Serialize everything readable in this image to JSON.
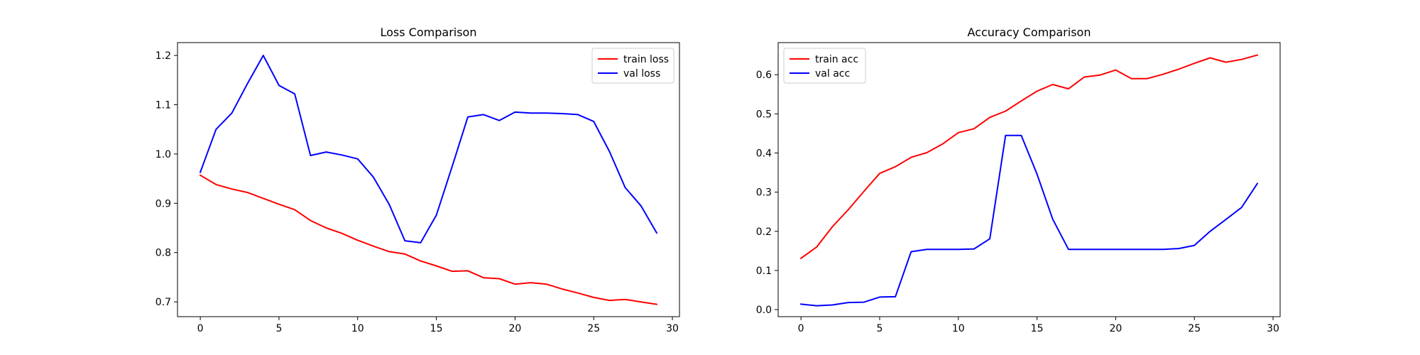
{
  "chart_data": [
    {
      "type": "line",
      "title": "Loss Comparison",
      "xlabel": "",
      "ylabel": "",
      "xlim": [
        -1.45,
        30.45
      ],
      "ylim": [
        0.67,
        1.226
      ],
      "xticks": [
        0,
        5,
        10,
        15,
        20,
        25,
        30
      ],
      "yticks": [
        0.7,
        0.8,
        0.9,
        1.0,
        1.1,
        1.2
      ],
      "ytick_labels": [
        "0.7",
        "0.8",
        "0.9",
        "1.0",
        "1.1",
        "1.2"
      ],
      "legend_position": "upper right",
      "x": [
        0,
        1,
        2,
        3,
        4,
        5,
        6,
        7,
        8,
        9,
        10,
        11,
        12,
        13,
        14,
        15,
        16,
        17,
        18,
        19,
        20,
        21,
        22,
        23,
        24,
        25,
        26,
        27,
        28,
        29
      ],
      "series": [
        {
          "name": "train loss",
          "color": "#ff0000",
          "values": [
            0.957,
            0.938,
            0.929,
            0.922,
            0.91,
            0.898,
            0.887,
            0.865,
            0.85,
            0.839,
            0.825,
            0.813,
            0.802,
            0.797,
            0.783,
            0.773,
            0.762,
            0.763,
            0.749,
            0.747,
            0.736,
            0.739,
            0.736,
            0.726,
            0.718,
            0.709,
            0.703,
            0.705,
            0.7,
            0.695
          ]
        },
        {
          "name": "val loss",
          "color": "#0000ff",
          "values": [
            0.963,
            1.05,
            1.083,
            1.143,
            1.2,
            1.139,
            1.122,
            0.997,
            1.004,
            0.998,
            0.99,
            0.953,
            0.898,
            0.824,
            0.82,
            0.876,
            0.974,
            1.075,
            1.08,
            1.068,
            1.085,
            1.083,
            1.083,
            1.082,
            1.08,
            1.066,
            1.005,
            0.932,
            0.895,
            0.84
          ]
        }
      ]
    },
    {
      "type": "line",
      "title": "Accuracy Comparison",
      "xlabel": "",
      "ylabel": "",
      "xlim": [
        -1.45,
        30.45
      ],
      "ylim": [
        -0.018,
        0.682
      ],
      "xticks": [
        0,
        5,
        10,
        15,
        20,
        25,
        30
      ],
      "yticks": [
        0.0,
        0.1,
        0.2,
        0.3,
        0.4,
        0.5,
        0.6
      ],
      "ytick_labels": [
        "0.0",
        "0.1",
        "0.2",
        "0.3",
        "0.4",
        "0.5",
        "0.6"
      ],
      "legend_position": "upper left",
      "x": [
        0,
        1,
        2,
        3,
        4,
        5,
        6,
        7,
        8,
        9,
        10,
        11,
        12,
        13,
        14,
        15,
        16,
        17,
        18,
        19,
        20,
        21,
        22,
        23,
        24,
        25,
        26,
        27,
        28,
        29
      ],
      "series": [
        {
          "name": "train acc",
          "color": "#ff0000",
          "values": [
            0.131,
            0.16,
            0.212,
            0.255,
            0.302,
            0.348,
            0.365,
            0.389,
            0.401,
            0.423,
            0.452,
            0.462,
            0.491,
            0.507,
            0.533,
            0.558,
            0.575,
            0.564,
            0.594,
            0.599,
            0.612,
            0.59,
            0.59,
            0.601,
            0.614,
            0.629,
            0.643,
            0.632,
            0.639,
            0.65
          ]
        },
        {
          "name": "val acc",
          "color": "#0000ff",
          "values": [
            0.014,
            0.01,
            0.012,
            0.018,
            0.019,
            0.032,
            0.033,
            0.148,
            0.154,
            0.154,
            0.154,
            0.155,
            0.181,
            0.445,
            0.445,
            0.346,
            0.231,
            0.154,
            0.154,
            0.154,
            0.154,
            0.154,
            0.154,
            0.154,
            0.156,
            0.164,
            0.2,
            0.23,
            0.261,
            0.322
          ]
        }
      ]
    }
  ]
}
